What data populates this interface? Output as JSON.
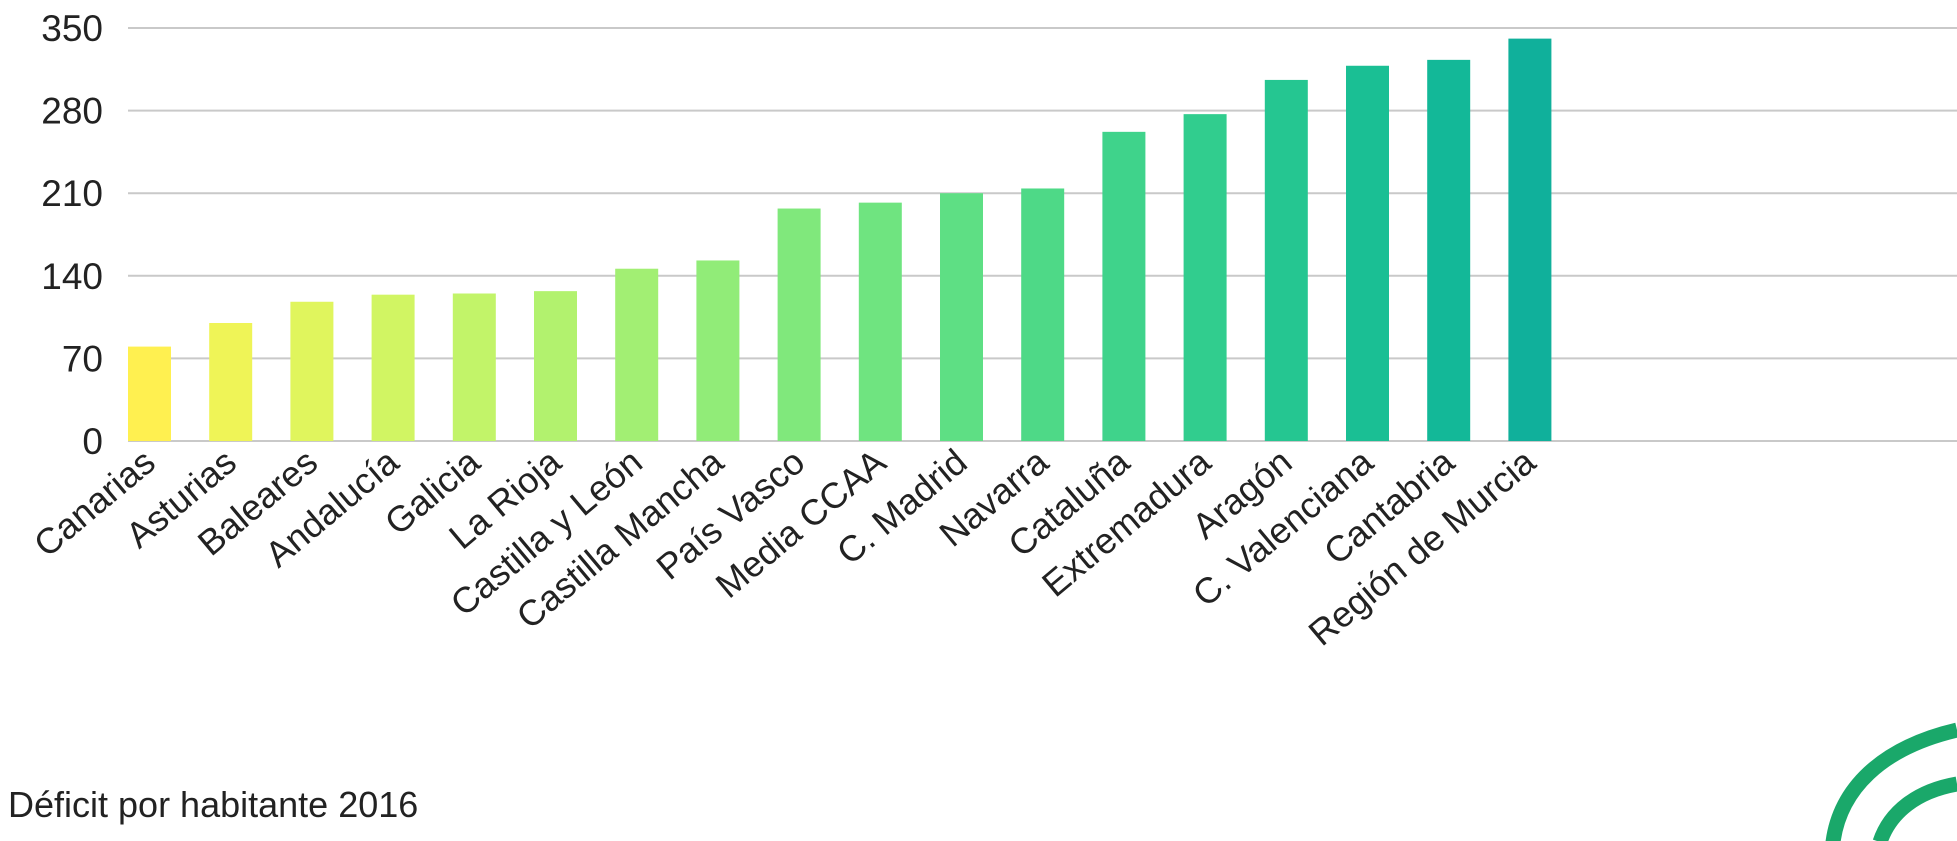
{
  "chart_data": {
    "type": "bar",
    "categories": [
      "Canarias",
      "Asturias",
      "Baleares",
      "Andalucía",
      "Galicia",
      "La Rioja",
      "Castilla y León",
      "Castilla Mancha",
      "País Vasco",
      "Media CCAA",
      "C. Madrid",
      "Navarra",
      "Cataluña",
      "Extremadura",
      "Aragón",
      "C. Valenciana",
      "Cantabria",
      "Región de Murcia"
    ],
    "values": [
      80,
      100,
      118,
      124,
      125,
      127,
      146,
      153,
      197,
      202,
      210,
      214,
      262,
      277,
      306,
      318,
      323,
      341
    ],
    "bar_colors": [
      "#fff050",
      "#eff457",
      "#e0f55d",
      "#d1f563",
      "#c2f469",
      "#b2f26e",
      "#a2ef73",
      "#91ec78",
      "#80e87c",
      "#6fe480",
      "#5edf84",
      "#4ed987",
      "#3fd38b",
      "#31cd8e",
      "#25c691",
      "#1abf94",
      "#13b898",
      "#10b09b"
    ],
    "title": "",
    "xlabel": "",
    "ylabel": "",
    "ylim": [
      0,
      350
    ],
    "yticks": [
      0,
      70,
      140,
      210,
      280,
      350
    ],
    "grid": true,
    "legend": "none",
    "footer": "Déficit por habitante 2016"
  },
  "colors": {
    "gridline": "#c9c9c9",
    "text": "#222222",
    "logo": "#1aa86a"
  },
  "icons": {
    "corner_logo": "junta-andalucia-arc-logo"
  }
}
